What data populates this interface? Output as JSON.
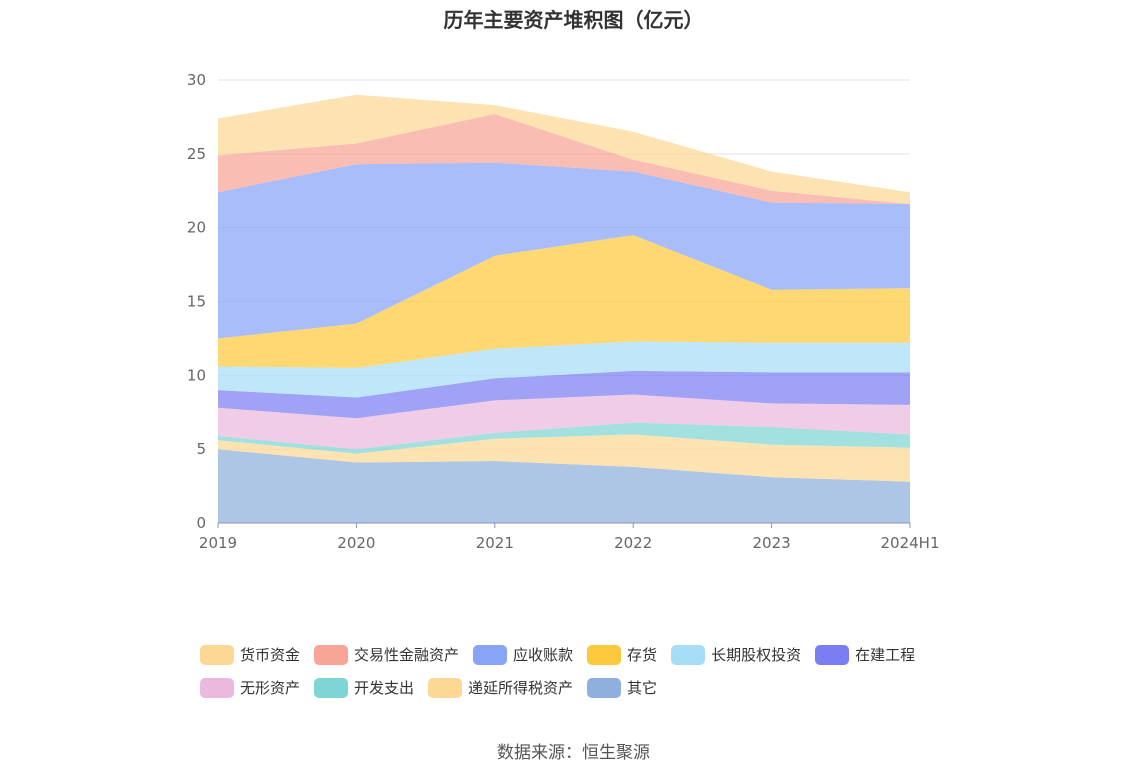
{
  "chart_data": {
    "type": "area",
    "stacked": true,
    "title": "历年主要资产堆积图（亿元）",
    "source": "数据来源：恒生聚源",
    "xlabel": "",
    "ylabel": "",
    "categories": [
      "2019",
      "2020",
      "2021",
      "2022",
      "2023",
      "2024H1"
    ],
    "yticks": [
      "0",
      "5",
      "10",
      "15",
      "20",
      "25",
      "30"
    ],
    "ylim": [
      0,
      30
    ],
    "grid": true,
    "legend_position": "bottom",
    "series": [
      {
        "name": "其它",
        "color": "#8fb0dc",
        "values": [
          5.0,
          4.1,
          4.2,
          3.8,
          3.1,
          2.8
        ]
      },
      {
        "name": "递延所得税资产",
        "color": "#fdd894",
        "values": [
          0.6,
          0.6,
          1.5,
          2.2,
          2.2,
          2.3
        ]
      },
      {
        "name": "开发支出",
        "color": "#7fd5d5",
        "values": [
          0.3,
          0.3,
          0.4,
          0.8,
          1.2,
          0.9
        ]
      },
      {
        "name": "无形资产",
        "color": "#eab9dd",
        "values": [
          1.9,
          2.1,
          2.2,
          1.9,
          1.6,
          2.0
        ]
      },
      {
        "name": "在建工程",
        "color": "#7b7ef2",
        "values": [
          1.2,
          1.4,
          1.5,
          1.6,
          2.1,
          2.2
        ]
      },
      {
        "name": "长期股权投资",
        "color": "#a6ddf7",
        "values": [
          1.6,
          2.0,
          2.0,
          2.0,
          2.0,
          2.0
        ]
      },
      {
        "name": "存货",
        "color": "#fcc93d",
        "values": [
          1.9,
          3.0,
          6.3,
          7.2,
          3.6,
          3.7
        ]
      },
      {
        "name": "应收账款",
        "color": "#87a4f7",
        "values": [
          9.9,
          10.8,
          6.3,
          4.3,
          5.9,
          5.7
        ]
      },
      {
        "name": "交易性金融资产",
        "color": "#f8a497",
        "values": [
          2.5,
          1.4,
          3.3,
          0.8,
          0.8,
          0.0
        ]
      },
      {
        "name": "货币资金",
        "color": "#fdd894",
        "values": [
          2.5,
          3.3,
          0.6,
          1.9,
          1.3,
          0.8
        ]
      }
    ],
    "legend_order": [
      "货币资金",
      "交易性金融资产",
      "应收账款",
      "存货",
      "长期股权投资",
      "在建工程",
      "无形资产",
      "开发支出",
      "递延所得税资产",
      "其它"
    ]
  }
}
